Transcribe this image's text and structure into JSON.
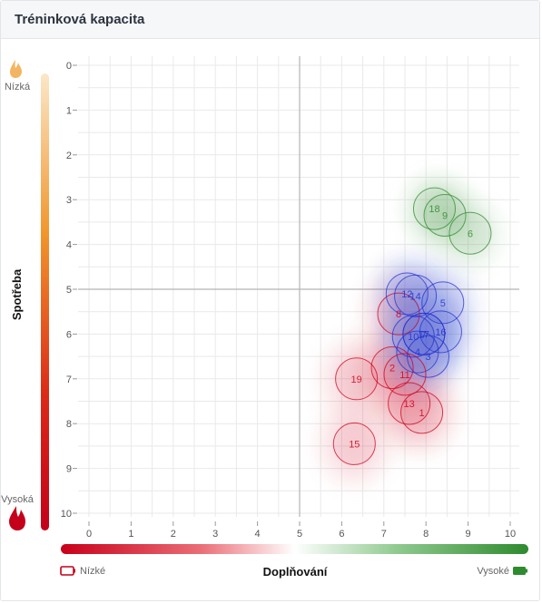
{
  "card": {
    "title": "Tréninková kapacita"
  },
  "colors": {
    "red": "#d0021b",
    "green": "#2e8b2e",
    "blue": "#2233cc",
    "orange_flame": "#f3b561",
    "grid": "#e9e9e9",
    "axis_center": "#b5b5b5"
  },
  "icons": {
    "top_flame": "flame-icon-light",
    "bottom_flame": "flame-icon-red",
    "legend_low": "battery-empty-icon",
    "legend_high": "battery-full-icon"
  },
  "y_legend": {
    "top_label": "Nízká",
    "bottom_label": "Vysoká",
    "axis_title": "Spotřeba"
  },
  "x_legend": {
    "left_label": "Nízké",
    "right_label": "Vysoké",
    "axis_title": "Doplňování"
  },
  "chart_data": {
    "type": "scatter",
    "title": "Tréninková kapacita",
    "xlabel": "Doplňování",
    "ylabel": "Spotřeba",
    "xlim": [
      0,
      10
    ],
    "ylim": [
      0,
      10
    ],
    "y_reversed": true,
    "x_ticks": [
      "0",
      "1",
      "2",
      "3",
      "4",
      "5",
      "6",
      "7",
      "8",
      "9",
      "10"
    ],
    "y_ticks": [
      "0",
      "1",
      "2",
      "3",
      "4",
      "5",
      "6",
      "7",
      "8",
      "9",
      "10"
    ],
    "reference_lines": {
      "x": 5,
      "y": 5
    },
    "grid": true,
    "points": [
      {
        "label": "1",
        "x": 7.9,
        "y": 7.75,
        "group": "red"
      },
      {
        "label": "2",
        "x": 7.2,
        "y": 6.75,
        "group": "red"
      },
      {
        "label": "3",
        "x": 8.05,
        "y": 6.5,
        "group": "blue"
      },
      {
        "label": "4",
        "x": 7.8,
        "y": 6.4,
        "group": "blue"
      },
      {
        "label": "5",
        "x": 8.4,
        "y": 5.3,
        "group": "blue"
      },
      {
        "label": "6",
        "x": 9.05,
        "y": 3.75,
        "group": "green"
      },
      {
        "label": "7",
        "x": 7.95,
        "y": 6.0,
        "group": "blue"
      },
      {
        "label": "8",
        "x": 7.35,
        "y": 5.55,
        "group": "red"
      },
      {
        "label": "9",
        "x": 8.45,
        "y": 3.35,
        "group": "green"
      },
      {
        "label": "10",
        "x": 7.7,
        "y": 6.05,
        "group": "blue"
      },
      {
        "label": "11",
        "x": 7.5,
        "y": 6.9,
        "group": "red"
      },
      {
        "label": "12",
        "x": 7.55,
        "y": 5.1,
        "group": "blue"
      },
      {
        "label": "13",
        "x": 7.6,
        "y": 7.55,
        "group": "red"
      },
      {
        "label": "14",
        "x": 7.75,
        "y": 5.15,
        "group": "blue"
      },
      {
        "label": "15",
        "x": 6.3,
        "y": 8.45,
        "group": "red"
      },
      {
        "label": "16",
        "x": 8.35,
        "y": 5.95,
        "group": "blue"
      },
      {
        "label": "17",
        "x": 7.95,
        "y": 6.0,
        "group": "blue"
      },
      {
        "label": "18",
        "x": 8.2,
        "y": 3.2,
        "group": "green"
      },
      {
        "label": "19",
        "x": 6.35,
        "y": 7.0,
        "group": "red"
      }
    ]
  }
}
